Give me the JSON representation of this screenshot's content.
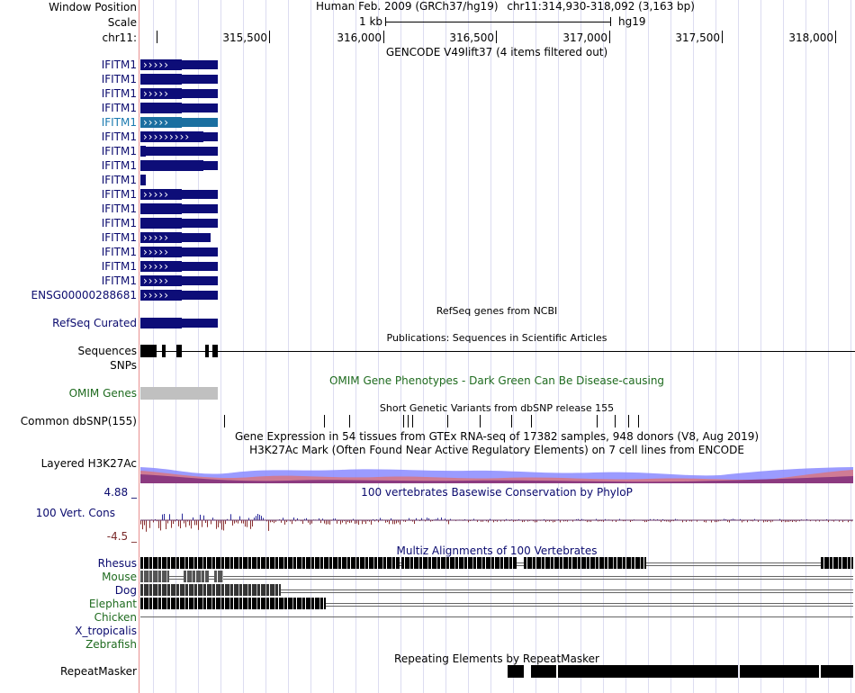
{
  "header": {
    "window_position_label": "Window Position",
    "scale_label": "Scale",
    "chrom_label": "chr11:",
    "assembly_text": "Human Feb. 2009 (GRCh37/hg19)",
    "position_text": "chr11:314,930-318,092 (3,163 bp)",
    "scale_value": "1 kb",
    "scale_db": "hg19",
    "ticks": [
      "315,500",
      "316,000",
      "316,500",
      "317,000",
      "317,500",
      "318,000"
    ]
  },
  "gencode": {
    "title": "GENCODE V49lift37 (4 items filtered out)",
    "items": [
      {
        "label": "IFITM1",
        "highlight": false
      },
      {
        "label": "IFITM1",
        "highlight": false
      },
      {
        "label": "IFITM1",
        "highlight": false
      },
      {
        "label": "IFITM1",
        "highlight": false
      },
      {
        "label": "IFITM1",
        "highlight": true
      },
      {
        "label": "IFITM1",
        "highlight": false
      },
      {
        "label": "IFITM1",
        "highlight": false
      },
      {
        "label": "IFITM1",
        "highlight": false
      },
      {
        "label": "IFITM1",
        "highlight": false
      },
      {
        "label": "IFITM1",
        "highlight": false
      },
      {
        "label": "IFITM1",
        "highlight": false
      },
      {
        "label": "IFITM1",
        "highlight": false
      },
      {
        "label": "IFITM1",
        "highlight": false
      },
      {
        "label": "IFITM1",
        "highlight": false
      },
      {
        "label": "IFITM1",
        "highlight": false
      },
      {
        "label": "IFITM1",
        "highlight": false
      },
      {
        "label": "ENSG00000288681",
        "highlight": false
      }
    ]
  },
  "tracks": {
    "refseq": {
      "label": "RefSeq Curated",
      "title": "RefSeq genes from NCBI"
    },
    "sequences": {
      "label": "Sequences",
      "title": "Publications: Sequences in Scientific Articles"
    },
    "snps": {
      "label": "SNPs"
    },
    "omim": {
      "label": "OMIM Genes",
      "title": "OMIM Gene Phenotypes - Dark Green Can Be Disease-causing"
    },
    "dbsnp": {
      "label": "Common dbSNP(155)",
      "title": "Short Genetic Variants from dbSNP release 155"
    },
    "gtex": {
      "title": "Gene Expression in 54 tissues from GTEx RNA-seq of 17382 samples, 948 donors (V8, Aug 2019)"
    },
    "h3k27ac": {
      "label": "Layered H3K27Ac",
      "title": "H3K27Ac Mark (Often Found Near Active Regulatory Elements) on 7 cell lines from ENCODE"
    },
    "phylop": {
      "label": "100 Vert. Cons",
      "title": "100 vertebrates Basewise Conservation by PhyloP",
      "max": "4.88 _",
      "min": "-4.5 _"
    },
    "multiz": {
      "title": "Multiz Alignments of 100 Vertebrates",
      "species": [
        {
          "name": "Rhesus",
          "color": "#0a0a6e"
        },
        {
          "name": "Mouse",
          "color": "#1f6b1f"
        },
        {
          "name": "Dog",
          "color": "#0a0a6e"
        },
        {
          "name": "Elephant",
          "color": "#1f6b1f"
        },
        {
          "name": "Chicken",
          "color": "#1f6b1f"
        },
        {
          "name": "X_tropicalis",
          "color": "#0a0a6e"
        },
        {
          "name": "Zebrafish",
          "color": "#1f6b1f"
        }
      ]
    },
    "repeatmasker": {
      "label": "RepeatMasker",
      "title": "Repeating Elements by RepeatMasker"
    }
  },
  "colors": {
    "navy": "#0d0d78",
    "highlight": "#1a6fa0",
    "omim": "#c0c0c0",
    "sep": "#e89090"
  }
}
